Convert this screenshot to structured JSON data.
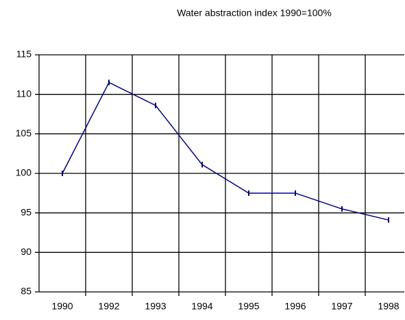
{
  "chart_data": {
    "type": "line",
    "title": "Water abstraction index 1990=100%",
    "categories": [
      "1990",
      "1992",
      "1993",
      "1994",
      "1995",
      "1996",
      "1997",
      "1998"
    ],
    "series": [
      {
        "color": "#000080",
        "values": [
          100,
          111.5,
          108.6,
          101.1,
          97.5,
          97.5,
          95.5,
          94.1
        ]
      }
    ],
    "ylim": [
      85,
      115
    ],
    "yticks": [
      85,
      90,
      95,
      100,
      105,
      110,
      115
    ],
    "grid": true
  }
}
